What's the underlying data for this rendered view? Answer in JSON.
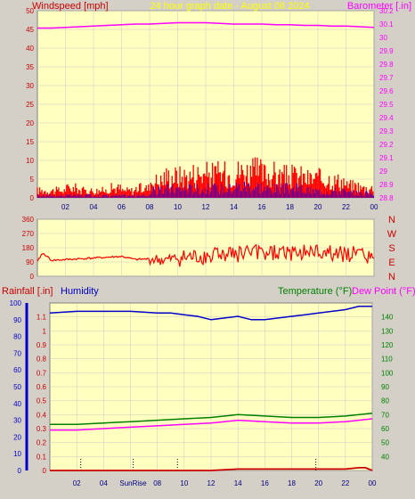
{
  "header": {
    "left_label": "Windspeed [mph]",
    "center_label": "24 hour graph date - August 08 2024",
    "right_label": "Barometer [.in]"
  },
  "colors": {
    "background": "#d4d0c8",
    "plot": "#ffffc0",
    "grid": "#c8c8c8",
    "wind_gust": "#ff0000",
    "wind_avg": "#0000ff",
    "wind_dir": "#ff0000",
    "barometer": "#ff00ff",
    "rainfall": "#cc0000",
    "humidity": "#0000cc",
    "temperature": "#008000",
    "dew_point": "#ff00ff"
  },
  "x_ticks": [
    "02",
    "04",
    "06",
    "08",
    "10",
    "12",
    "14",
    "16",
    "18",
    "20",
    "22",
    "00"
  ],
  "chart_data": [
    {
      "type": "line",
      "name": "wind-barometer",
      "title": "24 hour graph date - August 08 2024",
      "ylabel_left": "Windspeed [mph]",
      "ylabel_right": "Barometer [.in]",
      "ylim_left": [
        0,
        50
      ],
      "yticks_left": [
        "0",
        "5",
        "10",
        "15",
        "20",
        "25",
        "30",
        "35",
        "40",
        "45",
        "50"
      ],
      "ylim_right": [
        28.8,
        30.2
      ],
      "yticks_right": [
        "28.8",
        "28.9",
        "29",
        "29.1",
        "29.2",
        "29.3",
        "29.4",
        "29.5",
        "29.6",
        "29.7",
        "29.8",
        "29.9",
        "30",
        "30.1",
        "30.2"
      ],
      "barometer": {
        "x": [
          0,
          1,
          2,
          3,
          4,
          5,
          6,
          7,
          8,
          9,
          10,
          11,
          12,
          13,
          14,
          15,
          16,
          17,
          18,
          19,
          20,
          21,
          22,
          23,
          24
        ],
        "y": [
          30.07,
          30.07,
          30.075,
          30.08,
          30.085,
          30.09,
          30.095,
          30.1,
          30.1,
          30.105,
          30.11,
          30.11,
          30.11,
          30.105,
          30.1,
          30.1,
          30.1,
          30.095,
          30.095,
          30.09,
          30.09,
          30.085,
          30.085,
          30.08,
          30.075
        ]
      },
      "wind_gust_max": [
        3,
        3,
        4,
        3,
        3,
        4,
        3,
        4,
        7,
        9,
        9,
        10,
        10,
        10,
        11,
        11,
        10,
        9,
        9,
        8,
        8,
        7,
        5,
        4
      ],
      "wind_avg_max": [
        1,
        1,
        1,
        1,
        1,
        1,
        1,
        1,
        3,
        4,
        4,
        4,
        4,
        4,
        5,
        5,
        4,
        4,
        4,
        3,
        3,
        3,
        2,
        2
      ]
    },
    {
      "type": "line",
      "name": "wind-direction",
      "ylim": [
        0,
        360
      ],
      "yticks": [
        "0",
        "90",
        "180",
        "270",
        "360"
      ],
      "direction_labels": [
        "N",
        "W",
        "S",
        "E",
        "N"
      ],
      "x": [
        0,
        0.3,
        0.5,
        1,
        2,
        3,
        4,
        5,
        6,
        7,
        8,
        9,
        10,
        11,
        12,
        13,
        14,
        15,
        16,
        17,
        18,
        19,
        20,
        21,
        22,
        23,
        24
      ],
      "y": [
        90,
        140,
        140,
        100,
        105,
        110,
        115,
        120,
        125,
        105,
        110,
        100,
        115,
        120,
        130,
        140,
        135,
        150,
        140,
        145,
        150,
        155,
        150,
        145,
        140,
        130,
        115
      ]
    },
    {
      "type": "line",
      "name": "rain-humidity-temp",
      "ylabel_left_a": "Rainfall [.in]",
      "ylabel_left_b": "Humidity",
      "ylabel_right_a": "Temperature (°F)",
      "ylabel_right_b": "Dew Point (°F)",
      "ylim_humidity": [
        0,
        100
      ],
      "yticks_humidity": [
        "0",
        "10",
        "20",
        "30",
        "40",
        "50",
        "60",
        "70",
        "80",
        "90",
        "100"
      ],
      "ylim_rain": [
        0,
        1.2
      ],
      "yticks_rain": [
        "0",
        "0.1",
        "0.2",
        "0.3",
        "0.4",
        "0.5",
        "0.6",
        "0.7",
        "0.8",
        "0.9",
        "1",
        "1.1"
      ],
      "ylim_temp": [
        30,
        150
      ],
      "yticks_temp": [
        "40",
        "50",
        "60",
        "70",
        "80",
        "90",
        "100",
        "110",
        "120",
        "130",
        "140"
      ],
      "sunrise_label": "SunRise",
      "humidity": {
        "x": [
          0,
          2,
          4,
          6,
          8,
          9,
          10,
          11,
          12,
          13,
          14,
          15,
          16,
          17,
          18,
          19,
          20,
          21,
          22,
          23,
          24
        ],
        "y": [
          94,
          95,
          95,
          95,
          94,
          94,
          93,
          92,
          90,
          91,
          92,
          90,
          90,
          91,
          92,
          93,
          94,
          95,
          96,
          98,
          98
        ]
      },
      "temperature": {
        "x": [
          0,
          2,
          4,
          6,
          8,
          10,
          12,
          13,
          14,
          16,
          18,
          20,
          22,
          24
        ],
        "y": [
          63,
          63,
          64,
          65,
          66,
          67,
          68,
          69,
          70,
          69,
          68,
          68,
          69,
          71
        ]
      },
      "dew_point": {
        "x": [
          0,
          2,
          4,
          6,
          8,
          10,
          12,
          13,
          14,
          16,
          18,
          20,
          22,
          24
        ],
        "y": [
          59,
          59,
          60,
          61,
          62,
          63,
          64,
          65,
          66,
          65,
          64,
          64,
          65,
          67
        ]
      },
      "rainfall": {
        "x": [
          0,
          12,
          14,
          16,
          18,
          20,
          22,
          23,
          23.5,
          24
        ],
        "y": [
          0,
          0,
          0.01,
          0.01,
          0.01,
          0.01,
          0.01,
          0.02,
          0.02,
          0.0
        ]
      }
    }
  ]
}
